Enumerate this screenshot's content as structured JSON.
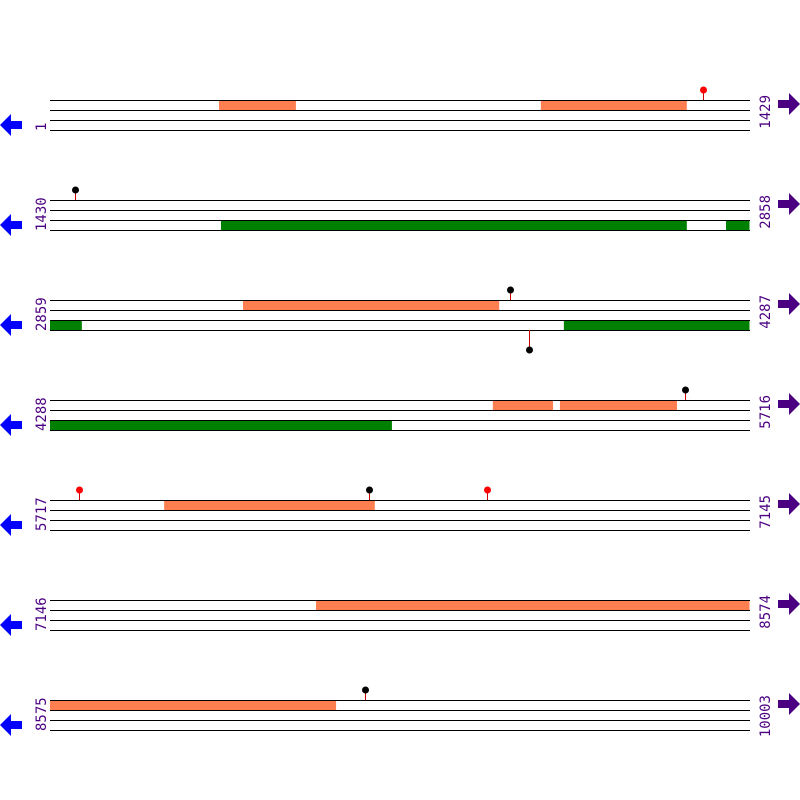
{
  "colors": {
    "orange": "#ff7f50",
    "green": "#008000",
    "line": "#000000",
    "stem": "#cc0000",
    "dot_black": "#000000",
    "dot_red": "#ff0000",
    "left_arrow": "#0000ff",
    "right_arrow": "#4b0082",
    "label": "#4b0082"
  },
  "icons": {
    "left": "arrow-left-icon",
    "right": "arrow-right-icon"
  },
  "rows": [
    {
      "start": "1",
      "end": "1429",
      "s": 1,
      "features": [
        {
          "band": "top",
          "color": "orange",
          "from": 346,
          "to": 503
        },
        {
          "band": "top",
          "color": "orange",
          "from": 1003,
          "to": 1301
        }
      ],
      "markers": [
        {
          "pos": 1334,
          "side": "top",
          "dot": "red"
        }
      ]
    },
    {
      "start": "1430",
      "end": "2858",
      "s": 1430,
      "features": [
        {
          "band": "bottom",
          "color": "green",
          "from": 1779,
          "to": 2730
        },
        {
          "band": "bottom",
          "color": "green",
          "from": 2810,
          "to": 2858
        }
      ],
      "markers": [
        {
          "pos": 1481,
          "side": "top",
          "dot": "black"
        }
      ]
    },
    {
      "start": "2859",
      "end": "4287",
      "s": 2859,
      "features": [
        {
          "band": "top",
          "color": "orange",
          "from": 3253,
          "to": 3776
        },
        {
          "band": "bottom",
          "color": "green",
          "from": 2859,
          "to": 2924
        },
        {
          "band": "bottom",
          "color": "green",
          "from": 3908,
          "to": 4287
        }
      ],
      "markers": [
        {
          "pos": 3798,
          "side": "top",
          "dot": "black"
        },
        {
          "pos": 3837,
          "side": "bottom",
          "dot": "black"
        }
      ]
    },
    {
      "start": "4288",
      "end": "5716",
      "s": 4288,
      "features": [
        {
          "band": "top",
          "color": "orange",
          "from": 5192,
          "to": 5315
        },
        {
          "band": "top",
          "color": "orange",
          "from": 5329,
          "to": 5568
        },
        {
          "band": "bottom",
          "color": "green",
          "from": 4288,
          "to": 4986
        }
      ],
      "markers": [
        {
          "pos": 5584,
          "side": "top",
          "dot": "black"
        }
      ]
    },
    {
      "start": "5717",
      "end": "7145",
      "s": 5717,
      "features": [
        {
          "band": "top",
          "color": "orange",
          "from": 5950,
          "to": 6380
        }
      ],
      "markers": [
        {
          "pos": 5776,
          "side": "top",
          "dot": "red"
        },
        {
          "pos": 6368,
          "side": "top",
          "dot": "black"
        },
        {
          "pos": 6609,
          "side": "top",
          "dot": "red"
        }
      ]
    },
    {
      "start": "7146",
      "end": "8574",
      "s": 7146,
      "features": [
        {
          "band": "top",
          "color": "orange",
          "from": 7689,
          "to": 8574
        }
      ],
      "markers": []
    },
    {
      "start": "8575",
      "end": "10003",
      "s": 8575,
      "features": [
        {
          "band": "top",
          "color": "orange",
          "from": 8575,
          "to": 9159
        }
      ],
      "markers": [
        {
          "pos": 9218,
          "side": "top",
          "dot": "black"
        }
      ]
    }
  ]
}
